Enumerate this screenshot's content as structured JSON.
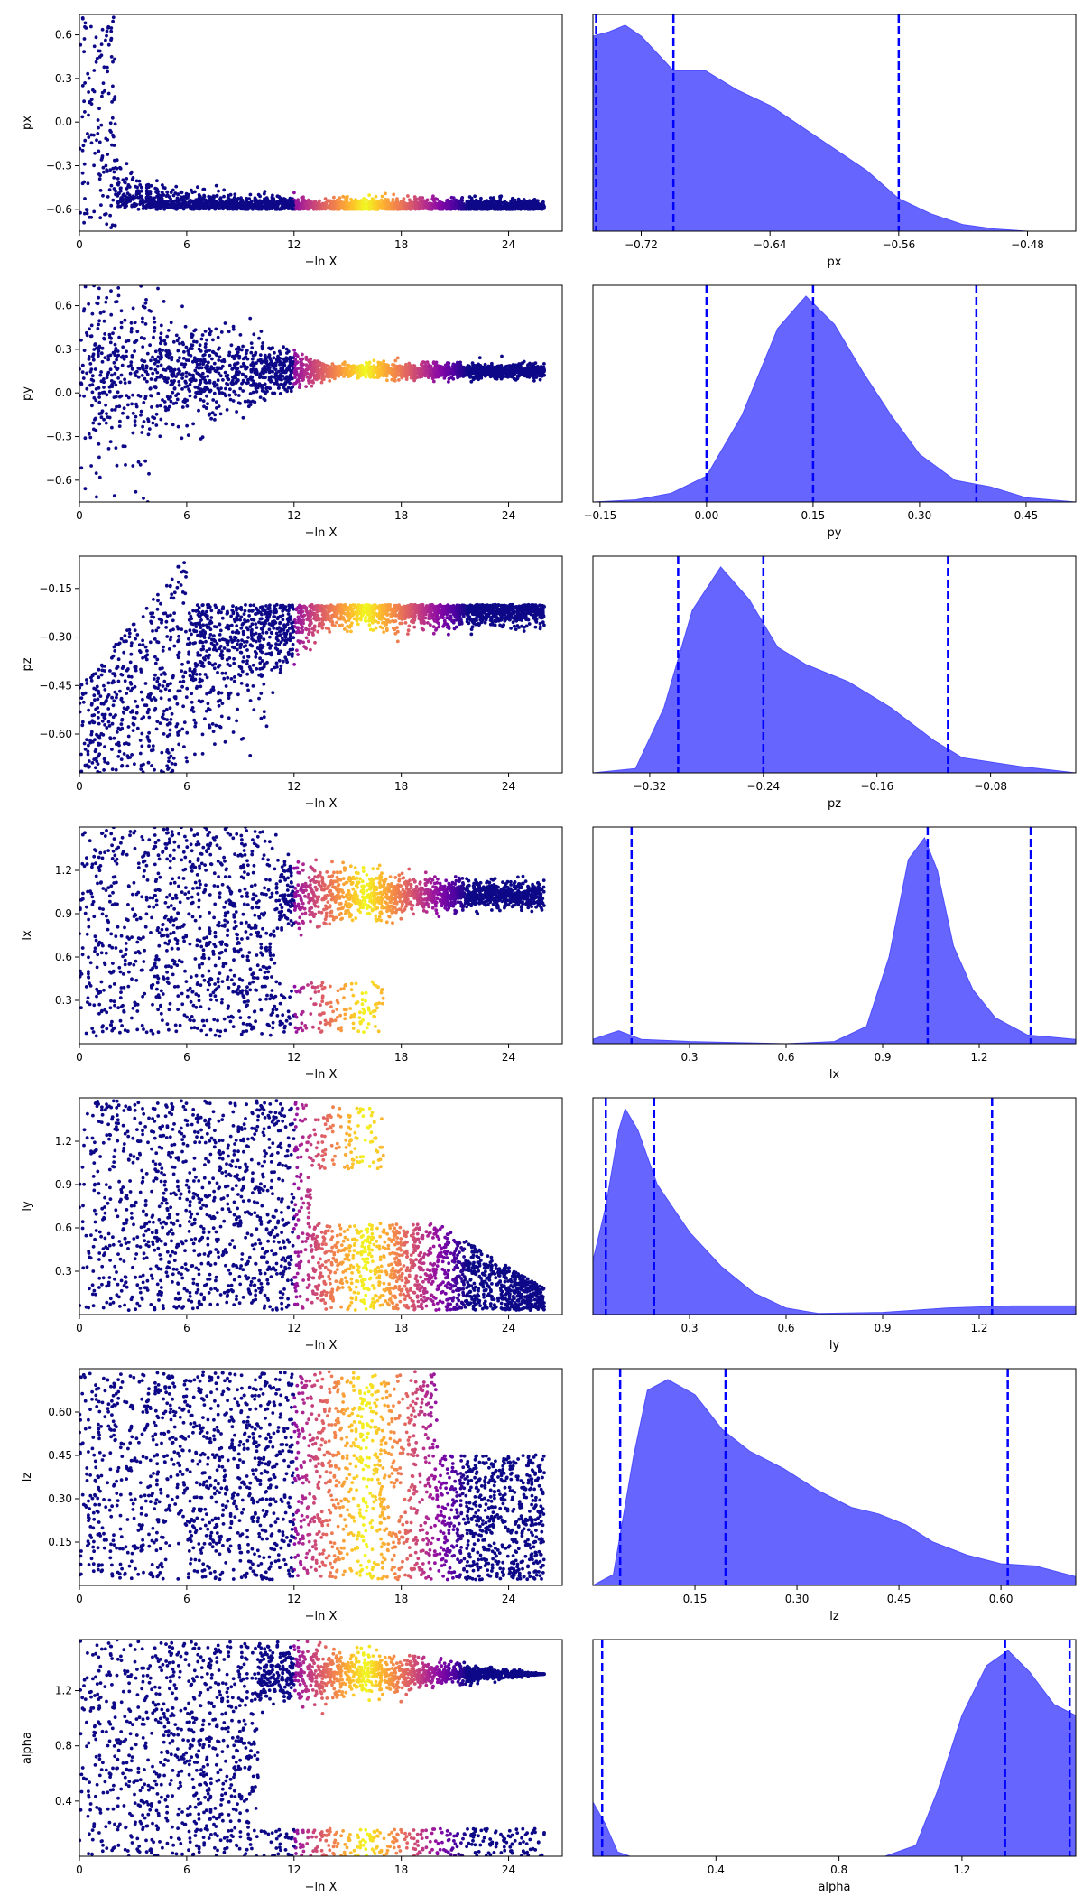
{
  "colors": {
    "hist_fill": "#6666ff",
    "hist_edge": "#4d4dff",
    "quantile": "#0000ff",
    "cmap": "plasma",
    "scatter_base": "#0d0887"
  },
  "chart_data": [
    {
      "type": "scatter",
      "param": "px",
      "xlabel": "−ln X",
      "ylabel": "px",
      "xlim": [
        0,
        27
      ],
      "ylim": [
        -0.75,
        0.74
      ],
      "xticks": [
        0,
        6,
        12,
        18,
        24
      ],
      "yticks": [
        0.6,
        0.3,
        0.0,
        -0.3,
        -0.6
      ],
      "ytick_labels": [
        "0.6",
        "0.3",
        "0.0",
        "−0.3",
        "−0.6"
      ],
      "shape": "converge",
      "converge_value": -0.6,
      "converge_spread": 0.08,
      "bright_range": [
        13,
        19
      ]
    },
    {
      "type": "area",
      "param": "px",
      "xlabel": "px",
      "xlim": [
        -0.75,
        -0.45
      ],
      "xticks": [
        -0.72,
        -0.64,
        -0.56,
        -0.48
      ],
      "xtick_labels": [
        "−0.72",
        "−0.64",
        "−0.56",
        "−0.48"
      ],
      "quantiles": [
        -0.748,
        -0.7,
        -0.56
      ],
      "curve": [
        [
          -0.75,
          0.9
        ],
        [
          -0.74,
          0.92
        ],
        [
          -0.73,
          0.95
        ],
        [
          -0.72,
          0.9
        ],
        [
          -0.7,
          0.74
        ],
        [
          -0.68,
          0.74
        ],
        [
          -0.66,
          0.65
        ],
        [
          -0.64,
          0.58
        ],
        [
          -0.62,
          0.48
        ],
        [
          -0.6,
          0.38
        ],
        [
          -0.58,
          0.28
        ],
        [
          -0.56,
          0.15
        ],
        [
          -0.54,
          0.08
        ],
        [
          -0.52,
          0.03
        ],
        [
          -0.5,
          0.01
        ],
        [
          -0.48,
          0.0
        ],
        [
          -0.45,
          0.0
        ]
      ]
    },
    {
      "type": "scatter",
      "param": "py",
      "xlabel": "−ln X",
      "ylabel": "py",
      "xlim": [
        0,
        27
      ],
      "ylim": [
        -0.75,
        0.74
      ],
      "xticks": [
        0,
        6,
        12,
        18,
        24
      ],
      "yticks": [
        0.6,
        0.3,
        0.0,
        -0.3,
        -0.6
      ],
      "ytick_labels": [
        "0.6",
        "0.3",
        "0.0",
        "−0.3",
        "−0.6"
      ],
      "shape": "funnel",
      "converge_value": 0.15,
      "converge_spread": 0.05,
      "bright_range": [
        13,
        19
      ]
    },
    {
      "type": "area",
      "param": "py",
      "xlabel": "py",
      "xlim": [
        -0.16,
        0.52
      ],
      "xticks": [
        -0.15,
        0.0,
        0.15,
        0.3,
        0.45
      ],
      "xtick_labels": [
        "−0.15",
        "0.00",
        "0.15",
        "0.30",
        "0.45"
      ],
      "quantiles": [
        0.0,
        0.15,
        0.38
      ],
      "curve": [
        [
          -0.16,
          0.0
        ],
        [
          -0.1,
          0.01
        ],
        [
          -0.05,
          0.04
        ],
        [
          0.0,
          0.12
        ],
        [
          0.05,
          0.4
        ],
        [
          0.1,
          0.8
        ],
        [
          0.14,
          0.95
        ],
        [
          0.18,
          0.82
        ],
        [
          0.22,
          0.6
        ],
        [
          0.26,
          0.4
        ],
        [
          0.3,
          0.22
        ],
        [
          0.35,
          0.1
        ],
        [
          0.4,
          0.07
        ],
        [
          0.45,
          0.02
        ],
        [
          0.52,
          0.0
        ]
      ]
    },
    {
      "type": "scatter",
      "param": "pz",
      "xlabel": "−ln X",
      "ylabel": "pz",
      "xlim": [
        0,
        27
      ],
      "ylim": [
        -0.72,
        -0.05
      ],
      "xticks": [
        0,
        6,
        12,
        18,
        24
      ],
      "yticks": [
        -0.15,
        -0.3,
        -0.45,
        -0.6
      ],
      "ytick_labels": [
        "−0.15",
        "−0.30",
        "−0.45",
        "−0.60"
      ],
      "shape": "converge_low",
      "converge_value": -0.25,
      "converge_spread": 0.06,
      "bright_range": [
        13,
        19
      ]
    },
    {
      "type": "area",
      "param": "pz",
      "xlabel": "pz",
      "xlim": [
        -0.36,
        -0.02
      ],
      "xticks": [
        -0.32,
        -0.24,
        -0.16,
        -0.08
      ],
      "xtick_labels": [
        "−0.32",
        "−0.24",
        "−0.16",
        "−0.08"
      ],
      "quantiles": [
        -0.3,
        -0.24,
        -0.11
      ],
      "curve": [
        [
          -0.36,
          0.0
        ],
        [
          -0.33,
          0.02
        ],
        [
          -0.31,
          0.3
        ],
        [
          -0.29,
          0.75
        ],
        [
          -0.27,
          0.95
        ],
        [
          -0.25,
          0.8
        ],
        [
          -0.23,
          0.58
        ],
        [
          -0.21,
          0.5
        ],
        [
          -0.18,
          0.42
        ],
        [
          -0.15,
          0.3
        ],
        [
          -0.12,
          0.15
        ],
        [
          -0.1,
          0.07
        ],
        [
          -0.06,
          0.03
        ],
        [
          -0.02,
          0.0
        ]
      ]
    },
    {
      "type": "scatter",
      "param": "lx",
      "xlabel": "−ln X",
      "ylabel": "lx",
      "xlim": [
        0,
        27
      ],
      "ylim": [
        0.0,
        1.5
      ],
      "xticks": [
        0,
        6,
        12,
        18,
        24
      ],
      "yticks": [
        1.2,
        0.9,
        0.6,
        0.3
      ],
      "ytick_labels": [
        "1.2",
        "0.9",
        "0.6",
        "0.3"
      ],
      "shape": "split",
      "converge_value": 1.03,
      "converge_spread": 0.04,
      "bright_range": [
        13,
        19
      ]
    },
    {
      "type": "area",
      "param": "lx",
      "xlabel": "lx",
      "xlim": [
        0.0,
        1.5
      ],
      "xticks": [
        0.3,
        0.6,
        0.9,
        1.2
      ],
      "xtick_labels": [
        "0.3",
        "0.6",
        "0.9",
        "1.2"
      ],
      "quantiles": [
        0.12,
        1.04,
        1.36
      ],
      "curve": [
        [
          0.0,
          0.02
        ],
        [
          0.08,
          0.06
        ],
        [
          0.15,
          0.02
        ],
        [
          0.3,
          0.01
        ],
        [
          0.6,
          0.0
        ],
        [
          0.75,
          0.01
        ],
        [
          0.85,
          0.08
        ],
        [
          0.92,
          0.4
        ],
        [
          0.98,
          0.85
        ],
        [
          1.03,
          0.95
        ],
        [
          1.07,
          0.8
        ],
        [
          1.12,
          0.45
        ],
        [
          1.18,
          0.25
        ],
        [
          1.25,
          0.12
        ],
        [
          1.35,
          0.04
        ],
        [
          1.5,
          0.02
        ]
      ]
    },
    {
      "type": "scatter",
      "param": "ly",
      "xlabel": "−ln X",
      "ylabel": "ly",
      "xlim": [
        0,
        27
      ],
      "ylim": [
        0.0,
        1.5
      ],
      "xticks": [
        0,
        6,
        12,
        18,
        24
      ],
      "yticks": [
        1.2,
        0.9,
        0.6,
        0.3
      ],
      "ytick_labels": [
        "1.2",
        "0.9",
        "0.6",
        "0.3"
      ],
      "shape": "band_low",
      "converge_value": 0.25,
      "converge_spread": 0.3,
      "bright_range": [
        13,
        19
      ]
    },
    {
      "type": "area",
      "param": "ly",
      "xlabel": "ly",
      "xlim": [
        0.0,
        1.5
      ],
      "xticks": [
        0.3,
        0.6,
        0.9,
        1.2
      ],
      "xtick_labels": [
        "0.3",
        "0.6",
        "0.9",
        "1.2"
      ],
      "quantiles": [
        0.04,
        0.19,
        1.24
      ],
      "curve": [
        [
          0.0,
          0.25
        ],
        [
          0.04,
          0.5
        ],
        [
          0.08,
          0.85
        ],
        [
          0.1,
          0.95
        ],
        [
          0.14,
          0.85
        ],
        [
          0.2,
          0.6
        ],
        [
          0.3,
          0.38
        ],
        [
          0.4,
          0.22
        ],
        [
          0.5,
          0.1
        ],
        [
          0.6,
          0.03
        ],
        [
          0.7,
          0.005
        ],
        [
          0.9,
          0.01
        ],
        [
          1.1,
          0.03
        ],
        [
          1.3,
          0.04
        ],
        [
          1.5,
          0.04
        ]
      ]
    },
    {
      "type": "scatter",
      "param": "lz",
      "xlabel": "−ln X",
      "ylabel": "lz",
      "xlim": [
        0,
        27
      ],
      "ylim": [
        0.0,
        0.75
      ],
      "xticks": [
        0,
        6,
        12,
        18,
        24
      ],
      "yticks": [
        0.6,
        0.45,
        0.3,
        0.15
      ],
      "ytick_labels": [
        "0.60",
        "0.45",
        "0.30",
        "0.15"
      ],
      "shape": "uniform",
      "converge_value": 0.3,
      "converge_spread": 0.3,
      "bright_range": [
        13,
        19
      ]
    },
    {
      "type": "area",
      "param": "lz",
      "xlabel": "lz",
      "xlim": [
        0.0,
        0.71
      ],
      "xticks": [
        0.15,
        0.3,
        0.45,
        0.6
      ],
      "xtick_labels": [
        "0.15",
        "0.30",
        "0.45",
        "0.60"
      ],
      "quantiles": [
        0.04,
        0.195,
        0.61
      ],
      "curve": [
        [
          0.0,
          0.0
        ],
        [
          0.03,
          0.05
        ],
        [
          0.06,
          0.6
        ],
        [
          0.08,
          0.9
        ],
        [
          0.11,
          0.95
        ],
        [
          0.15,
          0.88
        ],
        [
          0.19,
          0.72
        ],
        [
          0.23,
          0.62
        ],
        [
          0.28,
          0.54
        ],
        [
          0.33,
          0.44
        ],
        [
          0.38,
          0.36
        ],
        [
          0.42,
          0.33
        ],
        [
          0.46,
          0.28
        ],
        [
          0.5,
          0.2
        ],
        [
          0.55,
          0.14
        ],
        [
          0.6,
          0.1
        ],
        [
          0.65,
          0.09
        ],
        [
          0.71,
          0.04
        ]
      ]
    },
    {
      "type": "scatter",
      "param": "alpha",
      "xlabel": "−ln X",
      "ylabel": "alpha",
      "xlim": [
        0,
        27
      ],
      "ylim": [
        0.0,
        1.57
      ],
      "xticks": [
        0,
        6,
        12,
        18,
        24
      ],
      "yticks": [
        1.2,
        0.8,
        0.4
      ],
      "ytick_labels": [
        "1.2",
        "0.8",
        "0.4"
      ],
      "shape": "split_alpha",
      "converge_value": 1.3,
      "converge_spread": 0.1,
      "bright_range": [
        13,
        19
      ]
    },
    {
      "type": "area",
      "param": "alpha",
      "xlabel": "alpha",
      "xlim": [
        0.0,
        1.57
      ],
      "xticks": [
        0.4,
        0.8,
        1.2
      ],
      "xtick_labels": [
        "0.4",
        "0.8",
        "1.2"
      ],
      "quantiles": [
        0.03,
        1.34,
        1.55
      ],
      "curve": [
        [
          0.0,
          0.25
        ],
        [
          0.04,
          0.15
        ],
        [
          0.08,
          0.02
        ],
        [
          0.12,
          0.0
        ],
        [
          0.95,
          0.0
        ],
        [
          1.05,
          0.05
        ],
        [
          1.12,
          0.3
        ],
        [
          1.2,
          0.65
        ],
        [
          1.28,
          0.88
        ],
        [
          1.35,
          0.95
        ],
        [
          1.42,
          0.85
        ],
        [
          1.5,
          0.7
        ],
        [
          1.57,
          0.65
        ]
      ]
    }
  ]
}
